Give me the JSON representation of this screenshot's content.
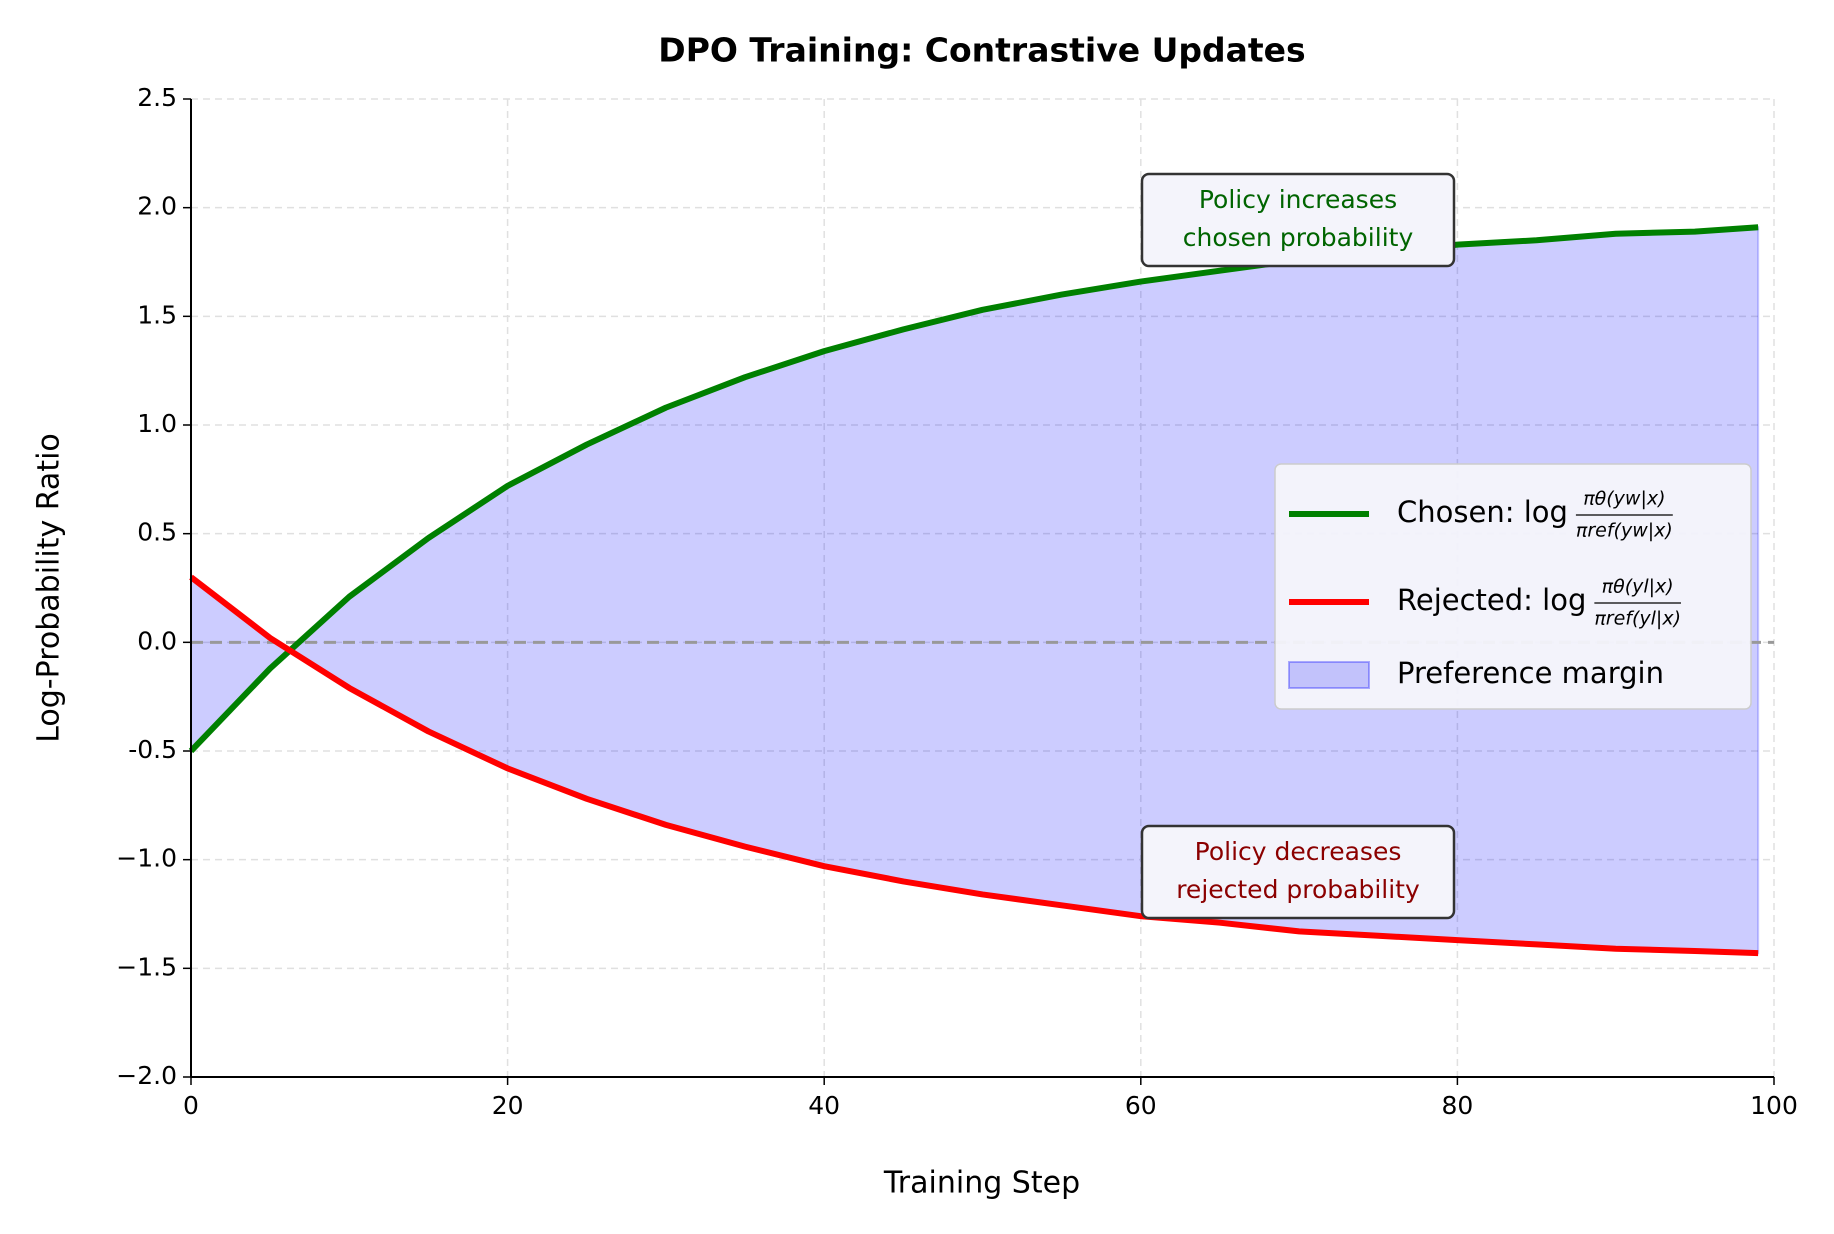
{
  "chart_data": {
    "type": "line",
    "title": "DPO Training: Contrastive Updates",
    "x_label": "Training Step",
    "y_label": "Log-Probability Ratio",
    "x": [
      0,
      5,
      10,
      15,
      20,
      25,
      30,
      35,
      40,
      45,
      50,
      55,
      60,
      65,
      70,
      75,
      80,
      85,
      90,
      95,
      99
    ],
    "series": [
      {
        "name": "Chosen: log",
        "legend_fraction": {
          "numerator": "πθ(yw|x)",
          "denominator": "πref(yw|x)"
        },
        "color": "#008000",
        "values": [
          -0.5,
          -0.12,
          0.21,
          0.48,
          0.72,
          0.91,
          1.08,
          1.22,
          1.34,
          1.44,
          1.53,
          1.6,
          1.66,
          1.71,
          1.76,
          1.79,
          1.83,
          1.85,
          1.88,
          1.89,
          1.91
        ]
      },
      {
        "name": "Rejected: log",
        "legend_fraction": {
          "numerator": "πθ(yl|x)",
          "denominator": "πref(yl|x)"
        },
        "color": "#ff0000",
        "values": [
          0.3,
          0.02,
          -0.21,
          -0.41,
          -0.58,
          -0.72,
          -0.84,
          -0.94,
          -1.03,
          -1.1,
          -1.16,
          -1.21,
          -1.26,
          -1.29,
          -1.33,
          -1.35,
          -1.37,
          -1.39,
          -1.41,
          -1.42,
          -1.43
        ]
      }
    ],
    "fill_between": {
      "name": "Preference margin",
      "color": "#0000ff",
      "opacity": 0.2
    },
    "reference_line": {
      "value": 0,
      "color": "#999999"
    },
    "annotations": [
      {
        "text": "Policy increases\nchosen probability",
        "color": "#006400"
      },
      {
        "text": "Policy decreases\nrejected probability",
        "color": "#8b0000"
      }
    ],
    "xlim": [
      0,
      100
    ],
    "xticks": [
      0,
      20,
      40,
      60,
      80,
      100
    ],
    "ylim": [
      -2.0,
      2.5
    ],
    "yticks": [
      {
        "value": -2.0,
        "label": "−2.0"
      },
      {
        "value": -1.5,
        "label": "−1.5"
      },
      {
        "value": -1.0,
        "label": "−1.0"
      },
      {
        "value": -0.5,
        "label": "-0.5"
      },
      {
        "value": 0.0,
        "label": "0.0"
      },
      {
        "value": 0.5,
        "label": "0.5"
      },
      {
        "value": 1.0,
        "label": "1.0"
      },
      {
        "value": 1.5,
        "label": "1.5"
      },
      {
        "value": 2.0,
        "label": "2.0"
      },
      {
        "value": 2.5,
        "label": "2.5"
      }
    ],
    "grid": true,
    "legend_position": "right"
  }
}
